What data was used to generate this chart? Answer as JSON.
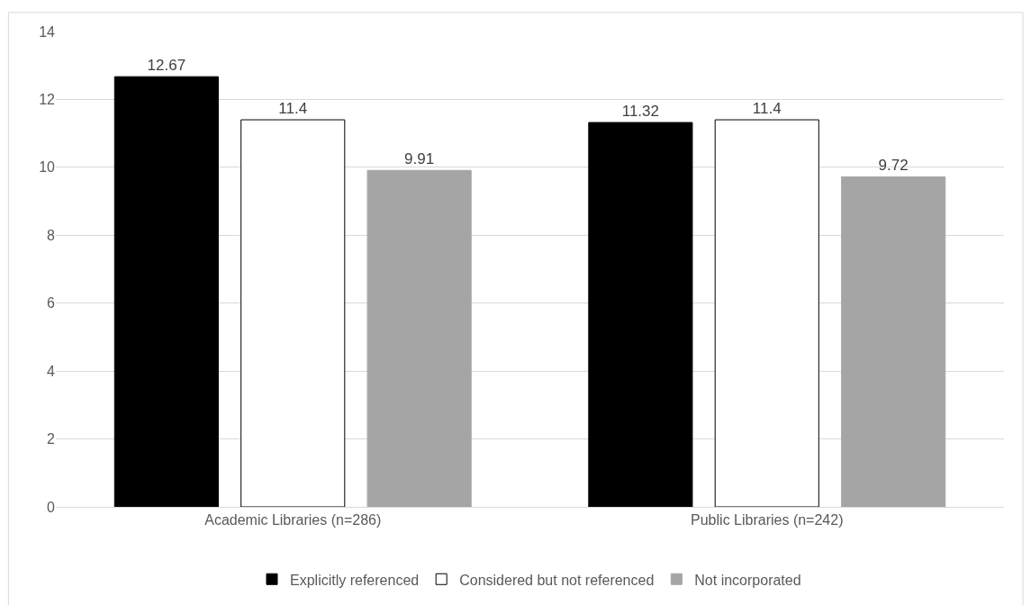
{
  "chart_data": {
    "type": "bar",
    "categories": [
      "Academic Libraries (n=286)",
      "Public Libraries (n=242)"
    ],
    "series": [
      {
        "name": "Explicitly referenced",
        "color": "#000000",
        "values": [
          12.67,
          11.32
        ]
      },
      {
        "name": "Considered but not referenced",
        "color": "#ffffff",
        "values": [
          11.4,
          11.4
        ]
      },
      {
        "name": "Not incorporated",
        "color": "#a5a5a5",
        "values": [
          9.91,
          9.72
        ]
      }
    ],
    "ylim": [
      0,
      14
    ],
    "yticks": [
      0,
      2,
      4,
      6,
      8,
      10,
      12,
      14
    ],
    "grid": "y",
    "legend": "bottom",
    "data_labels": true
  }
}
